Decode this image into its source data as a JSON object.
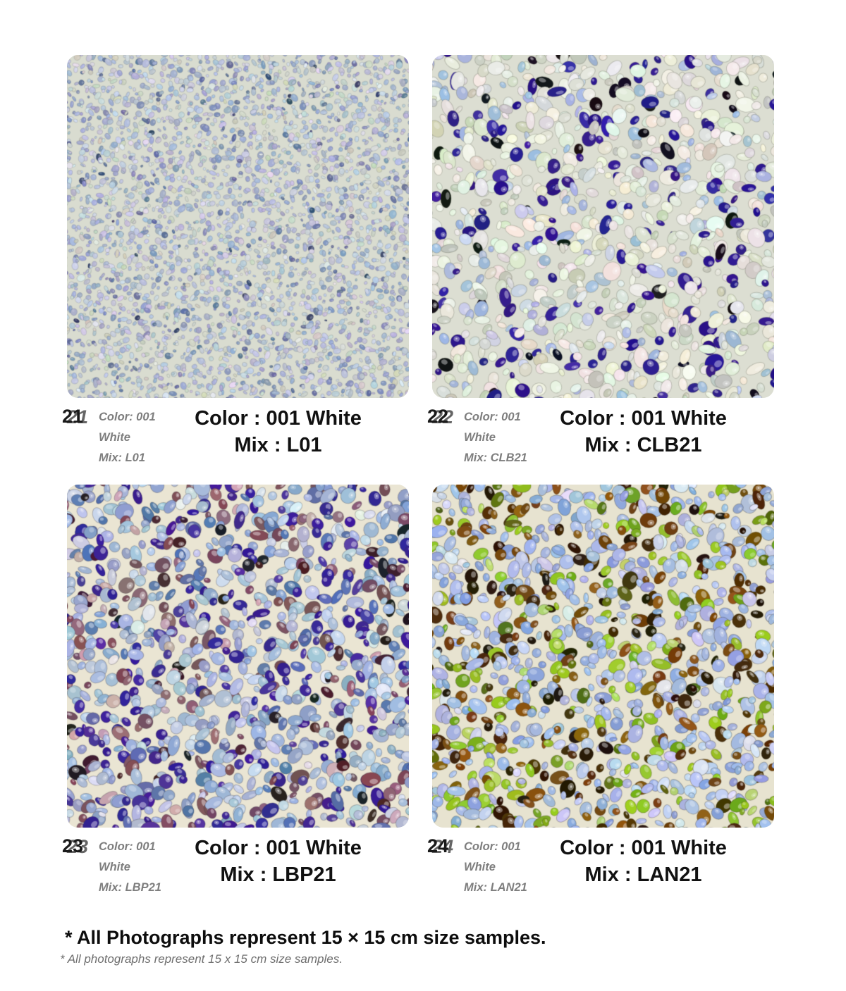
{
  "page": {
    "footnote_bold": "* All Photographs represent 15 × 15 cm size samples.",
    "footnote_italic": "* All photographs represent 15 x 15 cm size samples."
  },
  "samples": [
    {
      "number": "21",
      "caption_small_color": "Color: 001 White",
      "caption_small_mix": "Mix: L01",
      "caption_big_color": "Color : 001 White",
      "caption_big_mix": "Mix : L01",
      "photo": {
        "description": "fine light-blue pebble aggregate",
        "background": "#d9dcd0",
        "edge": "rgba(70,78,95,0.18)",
        "step": 9,
        "size_min": 4,
        "size_max": 10,
        "highlight_alpha": 0.22,
        "palette": [
          {
            "color": "#b0bbd4",
            "weight": 24
          },
          {
            "color": "#bfc9dc",
            "weight": 20
          },
          {
            "color": "#9faccb",
            "weight": 16
          },
          {
            "color": "#cdd4e1",
            "weight": 12
          },
          {
            "color": "#ccd1c3",
            "weight": 10
          },
          {
            "color": "#8795bb",
            "weight": 9
          },
          {
            "color": "#68779f",
            "weight": 4
          },
          {
            "color": "#dfe2ea",
            "weight": 4
          },
          {
            "color": "#3e4a6e",
            "weight": 1
          }
        ]
      }
    },
    {
      "number": "22",
      "caption_small_color": "Color: 001 White",
      "caption_small_mix": "Mix: CLB21",
      "caption_big_color": "Color : 001 White",
      "caption_big_mix": "Mix : CLB21",
      "photo": {
        "description": "white pebble base with navy and light-blue accents",
        "background": "#dcded2",
        "edge": "rgba(85,90,75,0.28)",
        "step": 17,
        "size_min": 10,
        "size_max": 24,
        "highlight_alpha": 0.38,
        "palette": [
          {
            "color": "#ebebe1",
            "weight": 34
          },
          {
            "color": "#e0e1d4",
            "weight": 18
          },
          {
            "color": "#c9cdbf",
            "weight": 10
          },
          {
            "color": "#2c1a8e",
            "weight": 13
          },
          {
            "color": "#3b28a2",
            "weight": 4
          },
          {
            "color": "#a6badc",
            "weight": 10
          },
          {
            "color": "#c6d2e8",
            "weight": 4
          },
          {
            "color": "#14141a",
            "weight": 3
          },
          {
            "color": "#f2f2ea",
            "weight": 4
          }
        ]
      }
    },
    {
      "number": "23",
      "caption_small_color": "Color: 001 White",
      "caption_small_mix": "Mix: LBP21",
      "caption_big_color": "Color : 001 White",
      "caption_big_mix": "Mix : LBP21",
      "photo": {
        "description": "light-blue pebbles with violet and plum accents",
        "background": "#eae5d3",
        "edge": "rgba(60,55,70,0.30)",
        "step": 16,
        "size_min": 10,
        "size_max": 23,
        "highlight_alpha": 0.4,
        "palette": [
          {
            "color": "#a9bdda",
            "weight": 28
          },
          {
            "color": "#8ea6cc",
            "weight": 12
          },
          {
            "color": "#c3d0e4",
            "weight": 8
          },
          {
            "color": "#5a74ae",
            "weight": 8
          },
          {
            "color": "#3a2296",
            "weight": 15
          },
          {
            "color": "#51379f",
            "weight": 4
          },
          {
            "color": "#7c4e5c",
            "weight": 9
          },
          {
            "color": "#936876",
            "weight": 4
          },
          {
            "color": "#46242c",
            "weight": 4
          },
          {
            "color": "#c9a8b0",
            "weight": 3
          },
          {
            "color": "#1c1c22",
            "weight": 3
          },
          {
            "color": "#e2e6ee",
            "weight": 2
          }
        ]
      }
    },
    {
      "number": "24",
      "caption_small_color": "Color: 001 White",
      "caption_small_mix": "Mix: LAN21",
      "caption_big_color": "Color : 001 White",
      "caption_big_mix": "Mix : LAN21",
      "photo": {
        "description": "light-blue pebbles with amber-brown and lime-green accents",
        "background": "#e7e3d0",
        "edge": "rgba(55,50,40,0.30)",
        "step": 16,
        "size_min": 10,
        "size_max": 23,
        "highlight_alpha": 0.4,
        "palette": [
          {
            "color": "#a7bce4",
            "weight": 28
          },
          {
            "color": "#c3d1ee",
            "weight": 10
          },
          {
            "color": "#8ca4d8",
            "weight": 12
          },
          {
            "color": "#74470f",
            "weight": 8
          },
          {
            "color": "#8a5a14",
            "weight": 6
          },
          {
            "color": "#4a2e06",
            "weight": 6
          },
          {
            "color": "#96c627",
            "weight": 9
          },
          {
            "color": "#76a81c",
            "weight": 5
          },
          {
            "color": "#28190a",
            "weight": 6
          },
          {
            "color": "#b9d86a",
            "weight": 3
          },
          {
            "color": "#586c12",
            "weight": 3
          },
          {
            "color": "#dde4f2",
            "weight": 4
          }
        ]
      }
    }
  ]
}
